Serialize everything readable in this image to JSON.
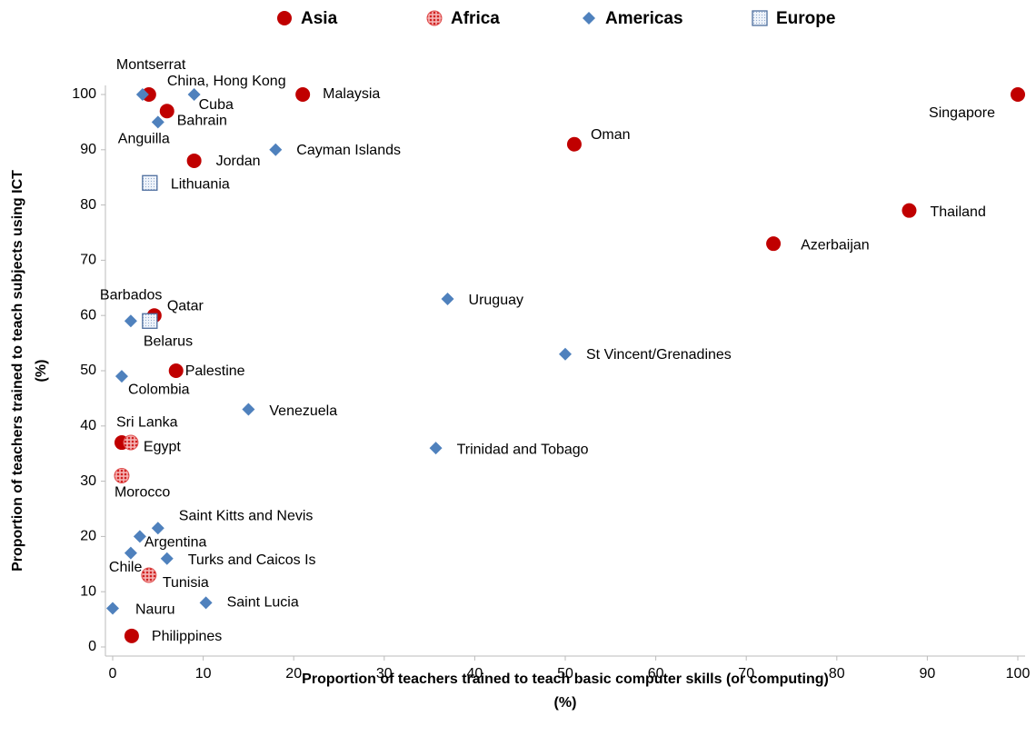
{
  "chart_data": {
    "type": "scatter",
    "xlabel": [
      "Proportion of teachers trained to teach basic computer skills (or computing)",
      "(%)"
    ],
    "ylabel": [
      "Proportion of teachers trained to teach subjects using ICT",
      "(%)"
    ],
    "xlim": [
      0,
      100
    ],
    "xticks": [
      0,
      10,
      20,
      30,
      40,
      50,
      60,
      70,
      80,
      90,
      100
    ],
    "ylim": [
      0,
      100
    ],
    "yticks": [
      0,
      10,
      20,
      30,
      40,
      50,
      60,
      70,
      80,
      90,
      100
    ],
    "series": [
      {
        "name": "Asia",
        "color": "#c00000",
        "marker": "circle",
        "labels": [
          "China, Hong Kong",
          "Bahrain",
          "Malaysia",
          "Jordan",
          "Singapore",
          "Oman",
          "Thailand",
          "Azerbaijan",
          "Qatar",
          "Palestine",
          "Sri Lanka",
          "Philippines"
        ],
        "x": [
          4,
          6,
          21,
          9,
          100,
          51,
          88,
          73,
          4.6,
          7,
          1,
          2.1
        ],
        "y": [
          100,
          97,
          100,
          88,
          100,
          91,
          79,
          73,
          60,
          50,
          37,
          2
        ]
      },
      {
        "name": "Africa",
        "color": "#e05050",
        "marker": "hatched-circle",
        "labels": [
          "Egypt",
          "Morocco",
          "Tunisia"
        ],
        "x": [
          2,
          1,
          4
        ],
        "y": [
          37,
          31,
          13
        ]
      },
      {
        "name": "Americas",
        "color": "#4f81bd",
        "marker": "diamond",
        "labels": [
          "Montserrat",
          "Cuba",
          "Anguilla",
          "Cayman Islands",
          "Barbados",
          "Uruguay",
          "St Vincent/Grenadines",
          "Colombia",
          "Venezuela",
          "Trinidad and Tobago",
          "Saint Kitts and Nevis",
          "Argentina",
          "Chile",
          "Turks and Caicos Is",
          "Saint Lucia",
          "Nauru"
        ],
        "x": [
          3.3,
          9,
          5,
          18,
          2,
          37,
          50,
          1,
          15,
          35.7,
          5,
          3,
          2,
          6,
          10.3,
          0
        ],
        "y": [
          100,
          100,
          95,
          90,
          59,
          63,
          53,
          49,
          43,
          36,
          21.5,
          20,
          17,
          16,
          8,
          7
        ]
      },
      {
        "name": "Europe",
        "color": "#4f6f9f",
        "marker": "square",
        "labels": [
          "Lithuania",
          "Belarus"
        ],
        "x": [
          4.1,
          4.1
        ],
        "y": [
          84,
          59
        ]
      }
    ]
  }
}
